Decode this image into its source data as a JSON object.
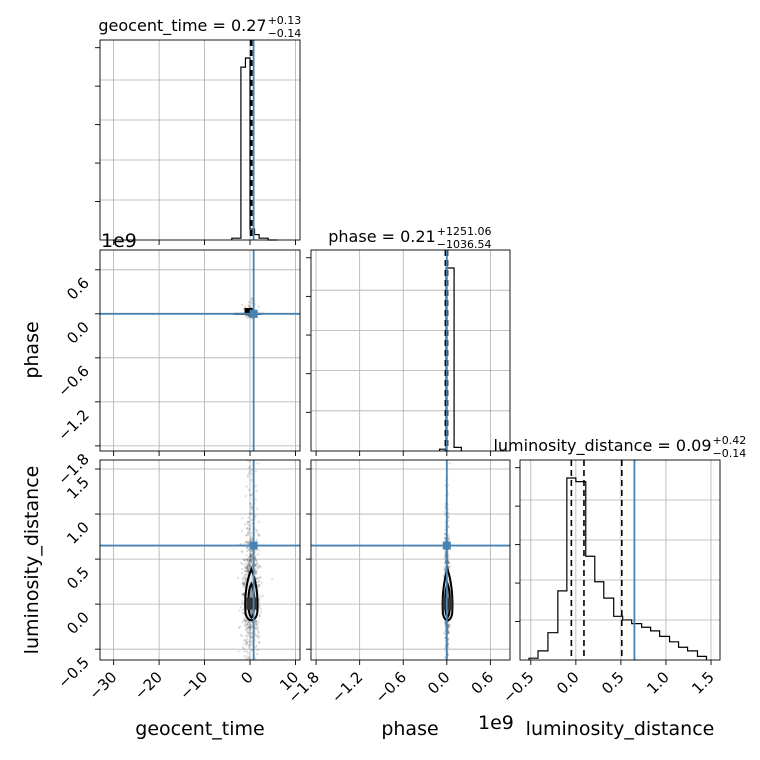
{
  "chart_data": {
    "type": "corner",
    "parameters": [
      "geocent_time",
      "phase",
      "luminosity_distance"
    ],
    "axis_labels": {
      "x": [
        "geocent_time",
        "phase",
        "luminosity_distance"
      ],
      "y": [
        "phase",
        "luminosity_distance"
      ]
    },
    "titles": [
      {
        "param": "geocent_time",
        "text": "geocent_time = 0.27",
        "plus": "+0.13",
        "minus": "−0.14"
      },
      {
        "param": "phase",
        "text": "phase = 0.21",
        "plus": "+1251.06",
        "minus": "−1036.54"
      },
      {
        "param": "luminosity_distance",
        "text": "luminosity_distance = 0.09",
        "plus": "+0.42",
        "minus": "−0.14"
      }
    ],
    "offset_labels": {
      "phase_y": "1e9",
      "phase_x": "1e9"
    },
    "ranges": {
      "geocent_time": [
        -33,
        11
      ],
      "phase": [
        -1.87,
        0.87
      ],
      "luminosity_distance": [
        -0.62,
        1.6
      ]
    },
    "ticks": {
      "geocent_time": [
        "−30",
        "−20",
        "−10",
        "0",
        "10"
      ],
      "geocent_time_values": [
        -30,
        -20,
        -10,
        0,
        10
      ],
      "phase": [
        "−1.8",
        "−1.2",
        "−0.6",
        "0.0",
        "0.6"
      ],
      "phase_values": [
        -1.8,
        -1.2,
        -0.6,
        0.0,
        0.6
      ],
      "luminosity_distance": [
        "−0.5",
        "0.0",
        "0.5",
        "1.0",
        "1.5"
      ],
      "luminosity_distance_values": [
        -0.5,
        0.0,
        0.5,
        1.0,
        1.5
      ]
    },
    "truths": {
      "geocent_time": 0.8,
      "phase": 0.0,
      "luminosity_distance": 0.65
    },
    "quantiles": {
      "geocent_time": [
        0.13,
        0.27,
        0.4
      ],
      "phase": [
        -0.02,
        0.0,
        0.01
      ],
      "luminosity_distance": [
        -0.05,
        0.09,
        0.51
      ]
    },
    "histograms": {
      "geocent_time": {
        "edges": [
          -4,
          -2,
          -1,
          0,
          1,
          2,
          4,
          6
        ],
        "counts": [
          0.01,
          0.95,
          1.0,
          0.06,
          0.03,
          0.01,
          0.0
        ]
      },
      "phase": {
        "edges": [
          -0.1,
          -0.01,
          0.1,
          0.2
        ],
        "counts": [
          0.01,
          1.0,
          0.02
        ]
      },
      "luminosity_distance": {
        "edges": [
          -0.52,
          -0.42,
          -0.31,
          -0.2,
          -0.1,
          0.0,
          0.11,
          0.21,
          0.31,
          0.42,
          0.52,
          0.62,
          0.73,
          0.83,
          0.93,
          1.04,
          1.14,
          1.24,
          1.35,
          1.45
        ],
        "counts": [
          0.01,
          0.05,
          0.15,
          0.38,
          1.0,
          0.98,
          0.57,
          0.43,
          0.34,
          0.24,
          0.22,
          0.2,
          0.18,
          0.16,
          0.13,
          0.1,
          0.07,
          0.05,
          0.02
        ]
      }
    },
    "grid": true
  }
}
